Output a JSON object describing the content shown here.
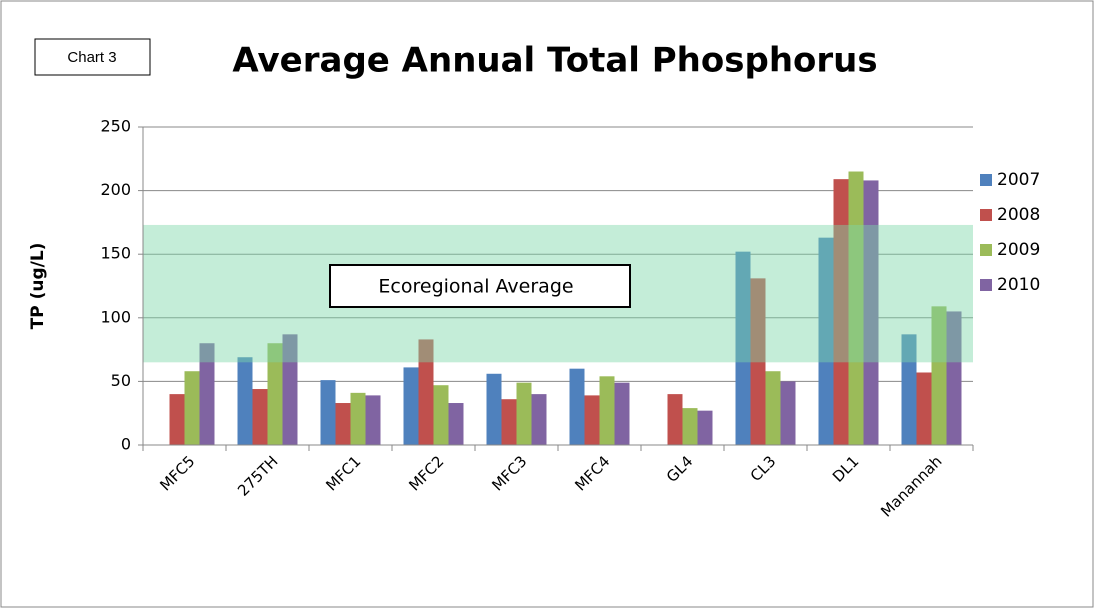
{
  "chart_data": {
    "type": "bar",
    "title": "Average Annual Total Phosphorus",
    "annotation": "Chart 3",
    "y_label": "TP (ug/L)",
    "categories": [
      "MFC5",
      "275TH",
      "MFC1",
      "MFC2",
      "MFC3",
      "MFC4",
      "GL4",
      "CL3",
      "DL1",
      "Manannah"
    ],
    "series": [
      {
        "name": "2007",
        "color": "#4f81bd",
        "values": [
          null,
          69,
          51,
          61,
          56,
          60,
          null,
          152,
          163,
          87
        ]
      },
      {
        "name": "2008",
        "color": "#c0504d",
        "values": [
          40,
          44,
          33,
          83,
          36,
          39,
          40,
          131,
          209,
          57
        ]
      },
      {
        "name": "2009",
        "color": "#9bbb59",
        "values": [
          58,
          80,
          41,
          47,
          49,
          54,
          29,
          58,
          215,
          109
        ]
      },
      {
        "name": "2010",
        "color": "#8064a2",
        "values": [
          80,
          87,
          39,
          33,
          40,
          49,
          27,
          50,
          208,
          105
        ]
      }
    ],
    "band": {
      "label": "Ecoregional Average",
      "range": [
        65,
        173
      ],
      "color": "#7dd8a8"
    },
    "ylim": [
      0,
      250
    ],
    "yticks": [
      0,
      50,
      100,
      150,
      200,
      250
    ],
    "grid": true,
    "legend": "right"
  }
}
